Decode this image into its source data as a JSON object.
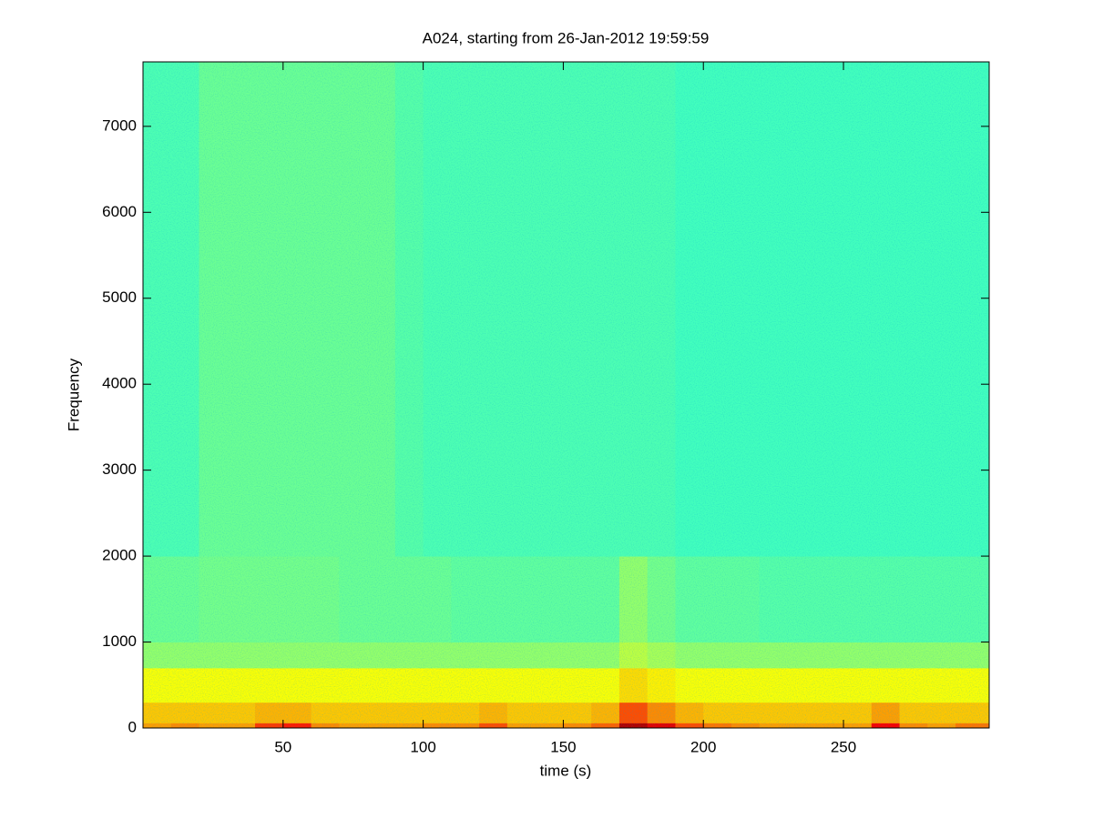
{
  "chart_data": {
    "type": "spectrogram",
    "title": "A024, starting from 26-Jan-2012 19:59:59",
    "x_label": "time (s)",
    "y_label": "Frequency",
    "xlim": [
      0,
      302
    ],
    "ylim": [
      0,
      7750
    ],
    "xticks": [
      50,
      100,
      150,
      200,
      250
    ],
    "yticks": [
      0,
      1000,
      2000,
      3000,
      4000,
      5000,
      6000,
      7000
    ],
    "colormap": "jet",
    "time_edges": [
      0,
      10,
      20,
      30,
      40,
      50,
      60,
      70,
      80,
      90,
      100,
      110,
      120,
      130,
      140,
      150,
      160,
      170,
      180,
      190,
      200,
      210,
      220,
      230,
      240,
      250,
      260,
      270,
      280,
      290,
      302
    ],
    "frequency_edges": [
      0,
      60,
      300,
      700,
      1000,
      2000,
      7750
    ],
    "z": [
      [
        0.72,
        0.74,
        0.72,
        0.72,
        0.82,
        0.85,
        0.74,
        0.72,
        0.72,
        0.72,
        0.74,
        0.74,
        0.8,
        0.72,
        0.72,
        0.74,
        0.78,
        0.95,
        0.9,
        0.8,
        0.76,
        0.74,
        0.72,
        0.72,
        0.72,
        0.72,
        0.88,
        0.74,
        0.72,
        0.76
      ],
      [
        0.68,
        0.68,
        0.68,
        0.68,
        0.7,
        0.7,
        0.68,
        0.68,
        0.68,
        0.68,
        0.68,
        0.68,
        0.7,
        0.68,
        0.68,
        0.68,
        0.7,
        0.8,
        0.74,
        0.7,
        0.68,
        0.68,
        0.68,
        0.68,
        0.68,
        0.68,
        0.72,
        0.68,
        0.68,
        0.68
      ],
      [
        0.62,
        0.62,
        0.62,
        0.62,
        0.62,
        0.62,
        0.62,
        0.62,
        0.62,
        0.62,
        0.62,
        0.62,
        0.62,
        0.62,
        0.62,
        0.62,
        0.62,
        0.66,
        0.64,
        0.62,
        0.62,
        0.62,
        0.62,
        0.62,
        0.62,
        0.62,
        0.62,
        0.62,
        0.62,
        0.62
      ],
      [
        0.52,
        0.52,
        0.52,
        0.52,
        0.52,
        0.52,
        0.52,
        0.52,
        0.52,
        0.52,
        0.52,
        0.52,
        0.52,
        0.52,
        0.52,
        0.52,
        0.52,
        0.56,
        0.54,
        0.52,
        0.52,
        0.52,
        0.52,
        0.52,
        0.52,
        0.52,
        0.52,
        0.52,
        0.52,
        0.52
      ],
      [
        0.48,
        0.48,
        0.49,
        0.49,
        0.49,
        0.49,
        0.49,
        0.48,
        0.48,
        0.48,
        0.48,
        0.47,
        0.47,
        0.47,
        0.47,
        0.47,
        0.47,
        0.52,
        0.49,
        0.47,
        0.47,
        0.47,
        0.46,
        0.46,
        0.46,
        0.46,
        0.46,
        0.46,
        0.46,
        0.46
      ],
      [
        0.45,
        0.45,
        0.48,
        0.48,
        0.48,
        0.48,
        0.48,
        0.48,
        0.48,
        0.46,
        0.45,
        0.45,
        0.45,
        0.45,
        0.45,
        0.45,
        0.45,
        0.45,
        0.45,
        0.44,
        0.44,
        0.44,
        0.44,
        0.44,
        0.44,
        0.44,
        0.44,
        0.44,
        0.44,
        0.44
      ]
    ]
  }
}
